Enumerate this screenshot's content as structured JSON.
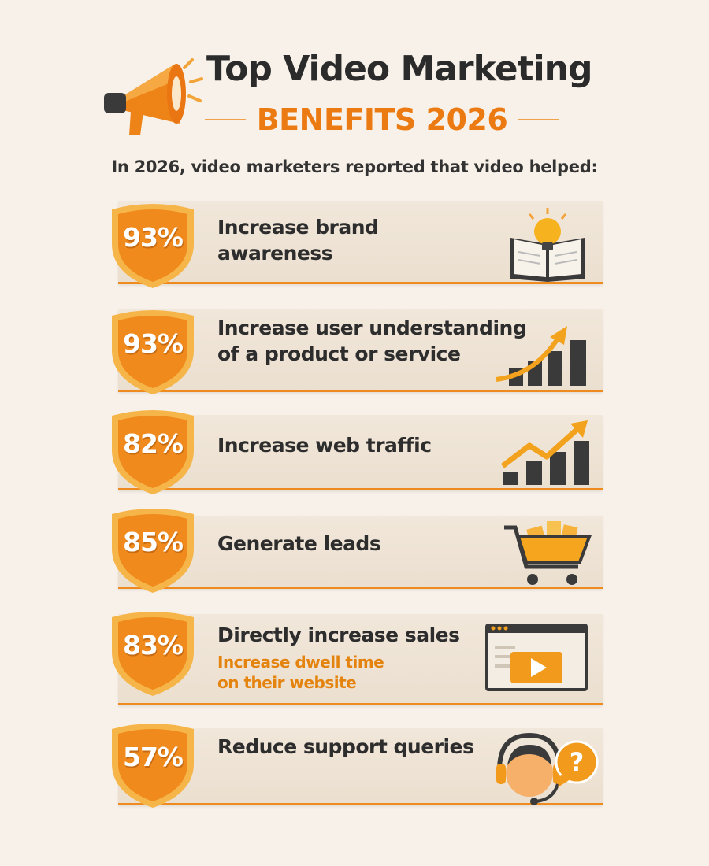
{
  "header": {
    "title": "Top Video Marketing",
    "subtitle": "BENEFITS 2026",
    "intro": "In 2026, video marketers reported that video helped:"
  },
  "colors": {
    "accent": "#ec7a12",
    "shield": "#f08a1c",
    "shield_rim": "#f6b548",
    "text": "#2b2b2b",
    "card": "#efe5d8"
  },
  "benefits": [
    {
      "percent": "93%",
      "label_line1": "Increase brand",
      "label_line2": "awareness",
      "icon": "lightbulb-book-icon"
    },
    {
      "percent": "93%",
      "label_line1": "Increase user understanding",
      "label_line2": "of a product or service",
      "icon": "growth-chart-icon"
    },
    {
      "percent": "82%",
      "label_line1": "Increase web traffic",
      "icon": "traffic-chart-icon"
    },
    {
      "percent": "85%",
      "label_line1": "Generate leads",
      "icon": "shopping-cart-icon"
    },
    {
      "percent": "83%",
      "label_line1": "Directly increase sales",
      "sub_line1": "Increase dwell time",
      "sub_line2": "on their website",
      "icon": "video-player-icon"
    },
    {
      "percent": "57%",
      "label_line1": "Reduce support queries",
      "icon": "support-agent-icon"
    }
  ]
}
